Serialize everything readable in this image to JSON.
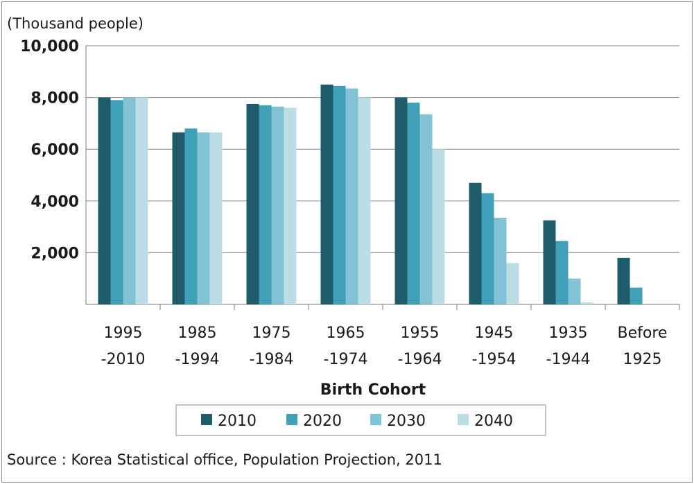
{
  "chart_data": {
    "type": "bar",
    "unit_label": "(Thousand people)",
    "xlabel": "Birth Cohort",
    "ylabel": "",
    "ylim": [
      0,
      10000
    ],
    "yticks": [
      "10,000",
      "8,000",
      "6,000",
      "4,000",
      "2,000"
    ],
    "ytick_values": [
      10000,
      8000,
      6000,
      4000,
      2000
    ],
    "grid": true,
    "legend_position": "bottom",
    "categories": [
      [
        "1995",
        "-2010"
      ],
      [
        "1985",
        "-1994"
      ],
      [
        "1975",
        "-1984"
      ],
      [
        "1965",
        "-1974"
      ],
      [
        "1955",
        "-1964"
      ],
      [
        "1945",
        "-1954"
      ],
      [
        "1935",
        "-1944"
      ],
      [
        "Before",
        "1925"
      ]
    ],
    "series": [
      {
        "name": "2010",
        "color": "#1f5c6b",
        "values": [
          8000,
          6650,
          7750,
          8500,
          8000,
          4700,
          3250,
          1800
        ]
      },
      {
        "name": "2020",
        "color": "#3fa0b8",
        "values": [
          7900,
          6800,
          7700,
          8450,
          7800,
          4300,
          2450,
          650
        ]
      },
      {
        "name": "2030",
        "color": "#82c2d4",
        "values": [
          8000,
          6650,
          7650,
          8350,
          7350,
          3350,
          1000,
          0
        ]
      },
      {
        "name": "2040",
        "color": "#bcdde6",
        "values": [
          8000,
          6650,
          7600,
          8000,
          6000,
          1600,
          80,
          0
        ]
      }
    ],
    "source": "Source : Korea Statistical  office,  Population  Projection,  2011"
  }
}
